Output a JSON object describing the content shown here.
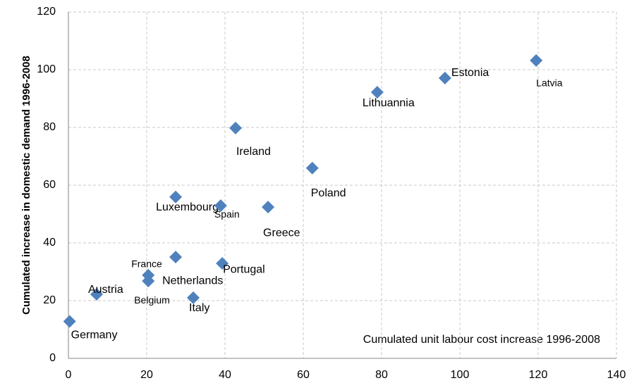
{
  "chart_data": {
    "type": "scatter",
    "y_label": "Cumulated increase in domestic demand 1996-2008",
    "annotation": "Cumulated unit labour cost increase 1996-2008",
    "labels": [
      "Germany",
      "Austria",
      "Belgium",
      "France",
      "Netherlands",
      "Italy",
      "Luxembourg",
      "Spain",
      "Portugal",
      "Ireland",
      "Greece",
      "Poland",
      "Lithuannia",
      "Estonia",
      "Latvia"
    ],
    "x": [
      0.3,
      7.2,
      20.4,
      20.4,
      27.4,
      31.9,
      27.4,
      38.9,
      39.3,
      42.7,
      51.0,
      62.3,
      78.9,
      96.2,
      119.5
    ],
    "values": [
      12.8,
      22.2,
      26.8,
      28.8,
      35.1,
      21.0,
      55.9,
      52.9,
      32.9,
      79.8,
      52.4,
      65.9,
      92.2,
      97.1,
      103.2
    ],
    "color": "#4f81bd",
    "xlim": [
      0,
      140
    ],
    "xticks": [
      0,
      20,
      40,
      60,
      80,
      100,
      120,
      140
    ],
    "ylim": [
      0,
      120
    ],
    "yticks": [
      0,
      20,
      40,
      60,
      80,
      100,
      120
    ],
    "grid": true
  }
}
